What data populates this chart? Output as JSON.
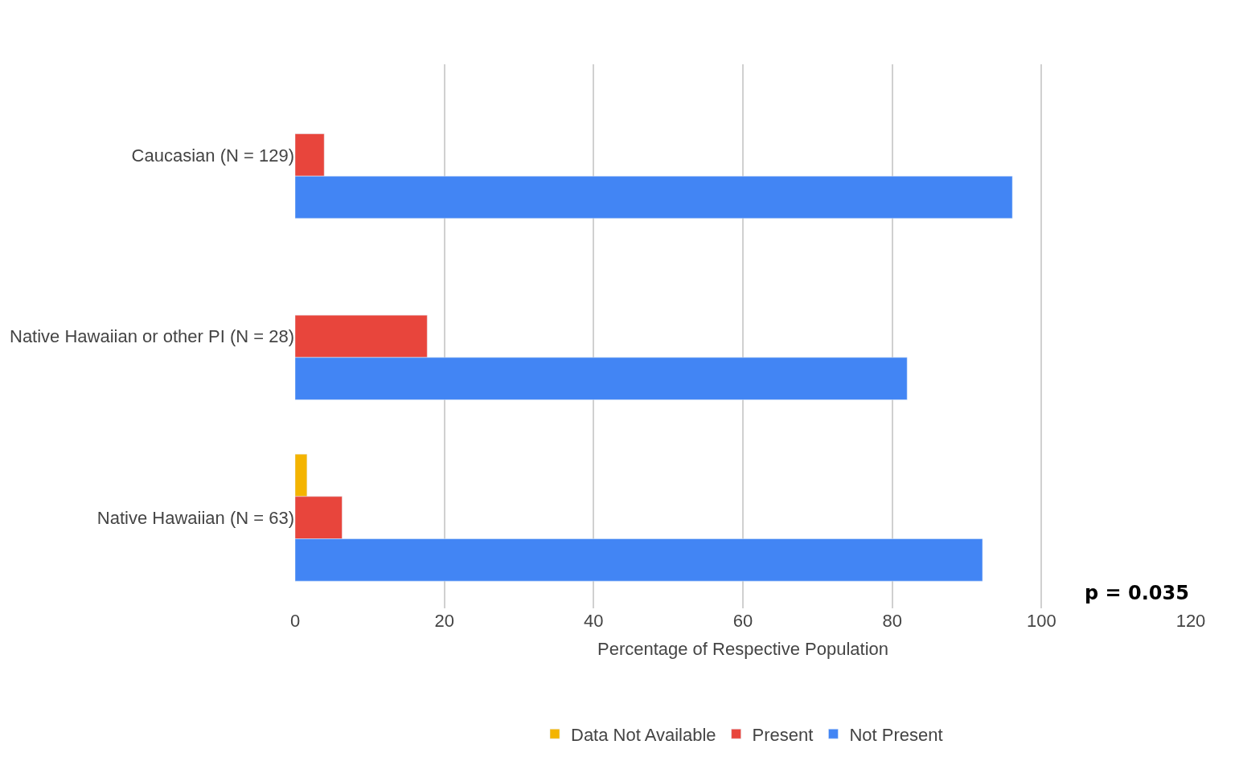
{
  "chart_data": {
    "type": "bar",
    "orientation": "horizontal",
    "categories": [
      "Caucasian (N = 129)",
      "Native Hawaiian or other PI (N = 28)",
      "Native Hawaiian (N = 63)"
    ],
    "series": [
      {
        "name": "Data Not Available",
        "color": "#f4b400",
        "values": [
          null,
          null,
          1.6
        ]
      },
      {
        "name": "Present",
        "color": "#e8453c",
        "values": [
          3.9,
          17.7,
          6.3
        ]
      },
      {
        "name": "Not Present",
        "color": "#4285f4",
        "values": [
          96.1,
          82.0,
          92.1
        ]
      }
    ],
    "xlabel": "Percentage of Respective Population",
    "xlim": [
      0,
      120
    ],
    "xticks": [
      0,
      20,
      40,
      60,
      80,
      100,
      120
    ],
    "grid": "x",
    "legend": "bottom",
    "annotations": [
      "p = 0.035"
    ]
  }
}
